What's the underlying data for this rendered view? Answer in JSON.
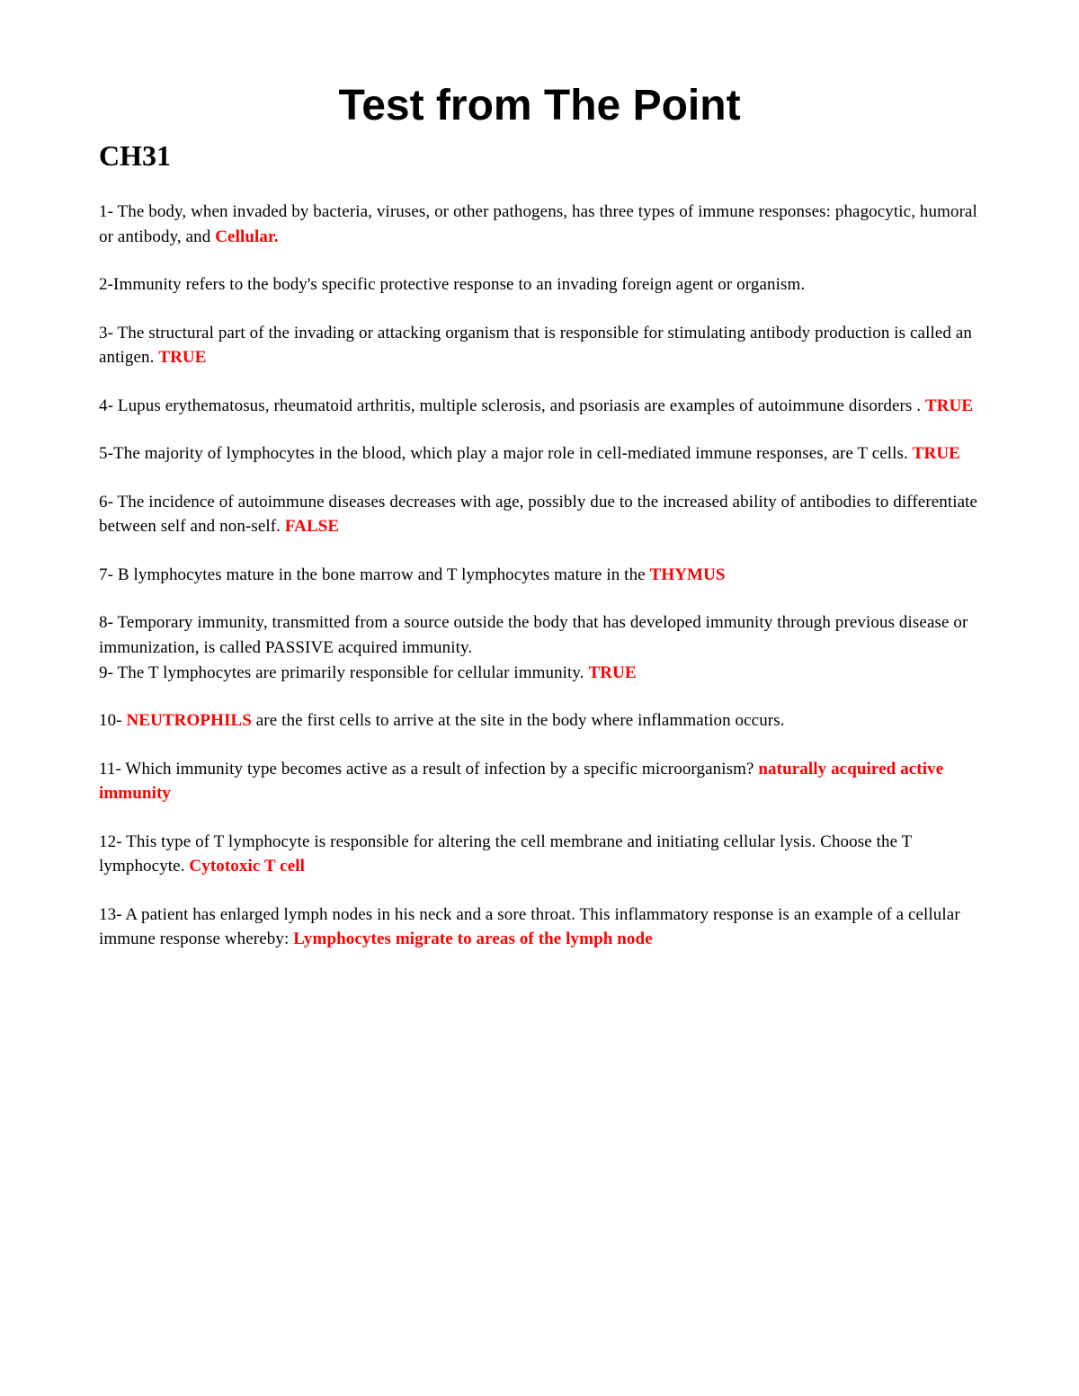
{
  "title": "Test from The Point",
  "chapter": "CH31",
  "items": [
    {
      "pre": "1- The body, when invaded by bacteria, viruses, or other pathogens, has three types of immune responses: phagocytic, humoral or antibody, and ",
      "answer": "Cellular.",
      "post": ""
    },
    {
      "pre": "2-Immunity refers to the body's specific protective response to an invading foreign agent or organism.",
      "answer": "",
      "post": ""
    },
    {
      "pre": "3- The structural part of the invading or attacking organism that is responsible for stimulating antibody production is called an antigen. ",
      "answer": "TRUE",
      "post": ""
    },
    {
      "pre": "4- Lupus erythematosus, rheumatoid arthritis, multiple sclerosis, and psoriasis are examples of autoimmune disorders . ",
      "answer": "TRUE",
      "post": ""
    },
    {
      "pre": "5-The majority of lymphocytes in the blood, which play a major role in cell-mediated immune responses, are T cells. ",
      "answer": "TRUE",
      "post": ""
    },
    {
      "pre": "6- The incidence of autoimmune diseases decreases with age, possibly due to the increased ability of antibodies to differentiate between self and non-self. ",
      "answer": "FALSE",
      "post": ""
    },
    {
      "pre": "7- B lymphocytes mature in the bone marrow and T lymphocytes mature in the ",
      "answer": "THYMUS",
      "post": ""
    },
    {
      "pre": "8- Temporary immunity, transmitted from a source outside the body that has developed immunity through previous disease or immunization, is called PASSIVE acquired immunity.",
      "answer": "",
      "post": "",
      "tight": true
    },
    {
      "pre": "9- The T lymphocytes are primarily responsible for cellular immunity. ",
      "answer": "TRUE",
      "post": ""
    },
    {
      "pre": "10- ",
      "answer": "NEUTROPHILS",
      "post": " are the first cells to arrive at the site in the body where inflammation occurs."
    },
    {
      "pre": "11- Which immunity type becomes active as a result of infection by a specific microorganism? ",
      "answer": "naturally acquired active immunity",
      "post": ""
    },
    {
      "pre": "12- This type of T lymphocyte is responsible for altering the cell membrane and initiating cellular lysis. Choose the T lymphocyte. ",
      "answer": "Cytotoxic T cell",
      "post": ""
    },
    {
      "pre": "13- A patient has enlarged lymph nodes in his neck and a sore throat. This inflammatory response is an example of a cellular immune response whereby: ",
      "answer": "Lymphocytes migrate to areas of the lymph node",
      "post": ""
    }
  ],
  "colors": {
    "answer": "#ff0000",
    "text": "#000000",
    "background": "#ffffff"
  }
}
